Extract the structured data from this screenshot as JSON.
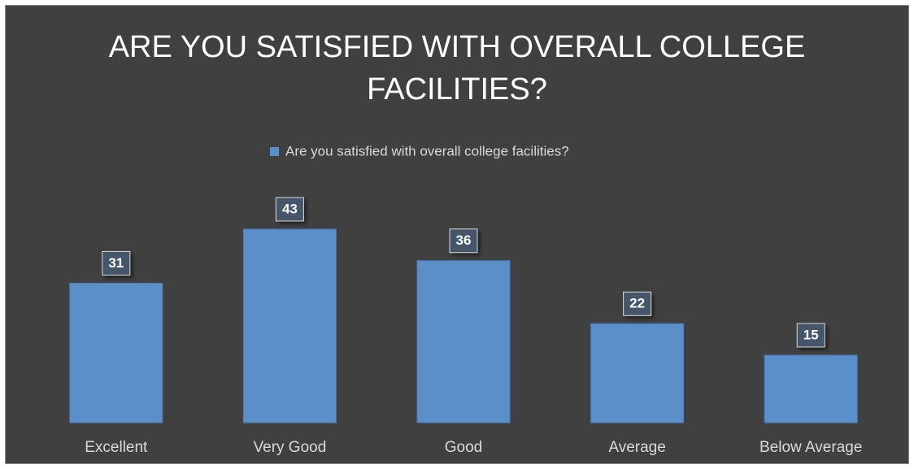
{
  "chart_data": {
    "type": "bar",
    "title": "ARE YOU SATISFIED WITH OVERALL COLLEGE FACILITIES?",
    "categories": [
      "Excellent",
      "Very Good",
      "Good",
      "Average",
      "Below Average"
    ],
    "series": [
      {
        "name": "Are you satisfied with overall college facilities?",
        "color": "#5b8fc9",
        "values": [
          31,
          43,
          36,
          22,
          15
        ]
      }
    ],
    "legend": "top"
  }
}
